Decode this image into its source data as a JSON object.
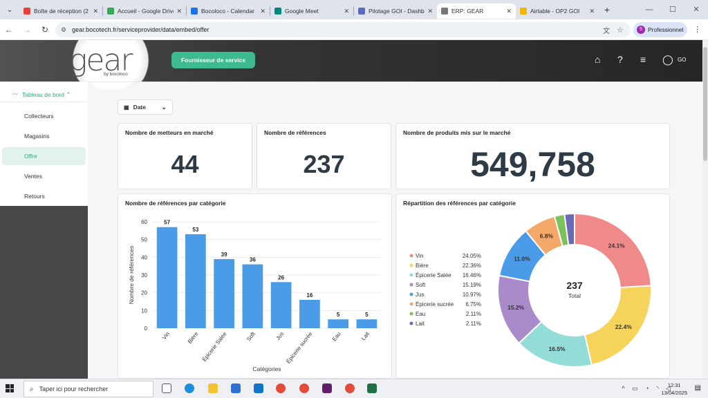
{
  "browser": {
    "tabs": [
      {
        "title": "Boîte de réception (2",
        "color": "#ea4335"
      },
      {
        "title": "Accueil - Google Drive",
        "color": "#34a853"
      },
      {
        "title": "Bocoloco - Calendar",
        "color": "#1a73e8"
      },
      {
        "title": "Google Meet",
        "color": "#00897b"
      },
      {
        "title": "Pilotage GOI - Dashb",
        "color": "#5c6bc0"
      },
      {
        "title": "ERP: GEAR",
        "color": "#777777",
        "active": true
      },
      {
        "title": "Airtable - OP2 GOI",
        "color": "#f4b400"
      }
    ],
    "url": "gear.bocotech.fr/serviceprovider/data/embed/offer",
    "profile_label": "Professionnel",
    "profile_initial": "S"
  },
  "header": {
    "logo_text": "gear",
    "logo_sub": "by bocoloco",
    "provider_button": "Fournisseur de service",
    "user_initials": "GO"
  },
  "sidebar": {
    "section_label": "Tableau de bord",
    "items": [
      {
        "label": "Collecteurs"
      },
      {
        "label": "Magasins"
      },
      {
        "label": "Offre",
        "active": true
      },
      {
        "label": "Ventes"
      },
      {
        "label": "Retours"
      }
    ]
  },
  "filter": {
    "date_label": "Date"
  },
  "kpis": [
    {
      "title": "Nombre de metteurs en marché",
      "value": "44"
    },
    {
      "title": "Nombre de références",
      "value": "237"
    },
    {
      "title": "Nombre de produits mis sur le marché",
      "value": "549,758"
    }
  ],
  "bar_card_title": "Nombre de références par catégorie",
  "donut_card_title": "Répartition des références par catégorie",
  "chart_data": [
    {
      "type": "bar",
      "title": "Nombre de références par catégorie",
      "categories": [
        "Vin",
        "Bière",
        "Épicerie Salée",
        "Soft",
        "Jus",
        "Épicerie sucrée",
        "Eau",
        "Lait"
      ],
      "values": [
        57,
        53,
        39,
        36,
        26,
        16,
        5,
        5
      ],
      "xlabel": "Catégories",
      "ylabel": "Nombre de références",
      "ylim": [
        0,
        60
      ],
      "yticks": [
        0,
        10,
        20,
        30,
        40,
        50,
        60
      ],
      "color": "#4a9be8",
      "grid": true
    },
    {
      "type": "pie",
      "title": "Répartition des références par catégorie",
      "donut": true,
      "center_value": "237",
      "center_label": "Total",
      "legend_position": "left",
      "slices": [
        {
          "name": "Vin",
          "percent": 24.05,
          "label": "24.1%",
          "legend_value": "24.05%",
          "color": "#f08a8a"
        },
        {
          "name": "Bière",
          "percent": 22.36,
          "label": "22.4%",
          "legend_value": "22.36%",
          "color": "#f6d35a"
        },
        {
          "name": "Épicerie Salée",
          "percent": 16.46,
          "label": "16.5%",
          "legend_value": "16.46%",
          "color": "#93dcd8"
        },
        {
          "name": "Soft",
          "percent": 15.19,
          "label": "15.2%",
          "legend_value": "15.19%",
          "color": "#a98bcb"
        },
        {
          "name": "Jus",
          "percent": 10.97,
          "label": "11.0%",
          "legend_value": "10.97%",
          "color": "#4a9be8"
        },
        {
          "name": "Épicerie sucrée",
          "percent": 6.75,
          "label": "6.8%",
          "legend_value": "6.75%",
          "color": "#f4a86a"
        },
        {
          "name": "Eau",
          "percent": 2.11,
          "label": "",
          "legend_value": "2.11%",
          "color": "#7cc25a"
        },
        {
          "name": "Lait",
          "percent": 2.11,
          "label": "",
          "legend_value": "2.11%",
          "color": "#6b6bb5"
        }
      ]
    }
  ],
  "taskbar": {
    "search_placeholder": "Taper ici pour rechercher",
    "time": "12:31",
    "date": "13/04/2025"
  }
}
